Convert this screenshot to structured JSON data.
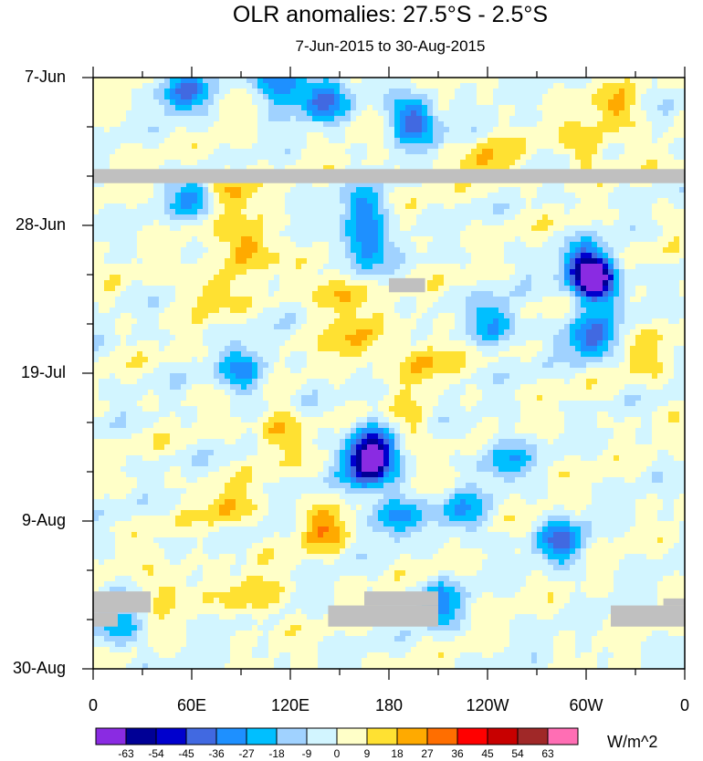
{
  "chart_data": {
    "type": "heatmap",
    "title": "OLR anomalies: 27.5°S - 2.5°S",
    "subtitle": "7-Jun-2015 to 30-Aug-2015",
    "x_ticks": [
      {
        "label": "0",
        "lon": 0
      },
      {
        "label": "60E",
        "lon": 60
      },
      {
        "label": "120E",
        "lon": 120
      },
      {
        "label": "180",
        "lon": 180
      },
      {
        "label": "120W",
        "lon": 240
      },
      {
        "label": "60W",
        "lon": 300
      },
      {
        "label": "0",
        "lon": 360
      }
    ],
    "x_range": [
      0,
      360
    ],
    "y_ticks": [
      {
        "label": "7-Jun",
        "day": 0
      },
      {
        "label": "28-Jun",
        "day": 21
      },
      {
        "label": "19-Jul",
        "day": 42
      },
      {
        "label": "9-Aug",
        "day": 63
      },
      {
        "label": "30-Aug",
        "day": 84
      }
    ],
    "y_range": [
      0,
      84
    ],
    "colorbar": {
      "units": "W/m^2",
      "labels": [
        "-63",
        "-54",
        "-45",
        "-36",
        "-27",
        "-18",
        "-9",
        "0",
        "9",
        "18",
        "27",
        "36",
        "45",
        "54",
        "63"
      ],
      "colors": [
        "#8a2be2",
        "#000096",
        "#0000cd",
        "#4169e1",
        "#1e90ff",
        "#00bfff",
        "#a0d2ff",
        "#d2f5ff",
        "#ffffc8",
        "#ffe132",
        "#ffaa00",
        "#ff6e00",
        "#ff0000",
        "#c80000",
        "#a02828",
        "#ff6eb4"
      ]
    },
    "features": [
      {
        "type": "negative",
        "lon": 168,
        "day": 55,
        "value": -60
      },
      {
        "type": "negative",
        "lon": 170,
        "day": 52,
        "value": -40
      },
      {
        "type": "negative",
        "lon": 183,
        "day": 62,
        "value": -30
      },
      {
        "type": "negative",
        "lon": 306,
        "day": 29,
        "value": -60
      },
      {
        "type": "negative",
        "lon": 300,
        "day": 27,
        "value": -40
      },
      {
        "type": "negative",
        "lon": 303,
        "day": 37,
        "value": -40
      },
      {
        "type": "negative",
        "lon": 165,
        "day": 24,
        "value": -35
      },
      {
        "type": "negative",
        "lon": 165,
        "day": 19,
        "value": -30
      },
      {
        "type": "negative",
        "lon": 115,
        "day": 1,
        "value": -40
      },
      {
        "type": "negative",
        "lon": 140,
        "day": 3,
        "value": -35
      },
      {
        "type": "negative",
        "lon": 195,
        "day": 6,
        "value": -45
      },
      {
        "type": "negative",
        "lon": 55,
        "day": 2,
        "value": -35
      },
      {
        "type": "negative",
        "lon": 62,
        "day": 17,
        "value": -30
      },
      {
        "type": "negative",
        "lon": 92,
        "day": 42,
        "value": -30
      },
      {
        "type": "negative",
        "lon": 245,
        "day": 35,
        "value": -30
      },
      {
        "type": "negative",
        "lon": 285,
        "day": 66,
        "value": -35
      },
      {
        "type": "negative",
        "lon": 210,
        "day": 75,
        "value": -30
      },
      {
        "type": "negative",
        "lon": 15,
        "day": 78,
        "value": -25
      },
      {
        "type": "negative",
        "lon": 250,
        "day": 54,
        "value": -25
      },
      {
        "type": "negative",
        "lon": 225,
        "day": 62,
        "value": -25
      },
      {
        "type": "positive",
        "lon": 95,
        "day": 24,
        "value": 30
      },
      {
        "type": "positive",
        "lon": 82,
        "day": 16,
        "value": 25
      },
      {
        "type": "positive",
        "lon": 150,
        "day": 31,
        "value": 25
      },
      {
        "type": "positive",
        "lon": 160,
        "day": 38,
        "value": 20
      },
      {
        "type": "positive",
        "lon": 70,
        "day": 30,
        "value": 20
      },
      {
        "type": "positive",
        "lon": 140,
        "day": 64,
        "value": 22
      },
      {
        "type": "positive",
        "lon": 112,
        "day": 50,
        "value": 20
      },
      {
        "type": "positive",
        "lon": 100,
        "day": 74,
        "value": 20
      },
      {
        "type": "positive",
        "lon": 240,
        "day": 12,
        "value": 18
      },
      {
        "type": "positive",
        "lon": 200,
        "day": 40,
        "value": 20
      },
      {
        "type": "positive",
        "lon": 300,
        "day": 10,
        "value": 18
      },
      {
        "type": "positive",
        "lon": 318,
        "day": 5,
        "value": 20
      },
      {
        "type": "positive",
        "lon": 82,
        "day": 61,
        "value": 18
      },
      {
        "type": "positive",
        "lon": 190,
        "day": 50,
        "value": 15
      },
      {
        "type": "positive",
        "lon": 335,
        "day": 40,
        "value": 12
      },
      {
        "type": "positive",
        "lon": 45,
        "day": 72,
        "value": 15
      }
    ],
    "missing": [
      {
        "lon": [
          0,
          360
        ],
        "day": [
          13,
          15
        ]
      },
      {
        "lon": [
          180,
          202
        ],
        "day": [
          28.5,
          30.5
        ]
      },
      {
        "lon": [
          0,
          35
        ],
        "day": [
          73,
          76
        ]
      },
      {
        "lon": [
          0,
          15
        ],
        "day": [
          76,
          78
        ]
      },
      {
        "lon": [
          143,
          210
        ],
        "day": [
          75,
          78
        ]
      },
      {
        "lon": [
          165,
          210
        ],
        "day": [
          73,
          75
        ]
      },
      {
        "lon": [
          315,
          360
        ],
        "day": [
          75,
          78
        ]
      },
      {
        "lon": [
          347,
          360
        ],
        "day": [
          74,
          75
        ]
      }
    ]
  }
}
